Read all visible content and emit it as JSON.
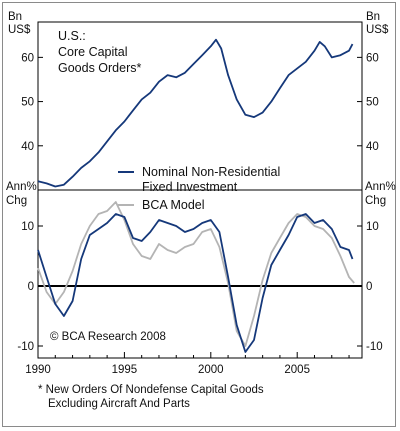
{
  "colors": {
    "navy": "#15387a",
    "gray": "#b4b4b4",
    "axis": "#000000",
    "frame": "#8a8a8a"
  },
  "chart_data": [
    {
      "type": "line",
      "panel": "top",
      "title": "U.S.:",
      "subtitle": "Core Capital Goods Orders*",
      "ylabel_left": [
        "Bn",
        "US$"
      ],
      "ylabel_right": [
        "Bn",
        "US$"
      ],
      "ylim": [
        30,
        68
      ],
      "yticks": [
        40,
        50,
        60
      ],
      "xlim": [
        1990,
        2008.75
      ],
      "series": [
        {
          "x": [
            1990.0,
            1990.5,
            1991.0,
            1991.5,
            1992.0,
            1992.5,
            1993.0,
            1993.5,
            1994.0,
            1994.5,
            1995.0,
            1995.5,
            1996.0,
            1996.5,
            1997.0,
            1997.5,
            1998.0,
            1998.5,
            1999.0,
            1999.5,
            2000.0,
            2000.3,
            2000.6,
            2001.0,
            2001.5,
            2002.0,
            2002.5,
            2003.0,
            2003.5,
            2004.0,
            2004.5,
            2005.0,
            2005.5,
            2006.0,
            2006.3,
            2006.6,
            2007.0,
            2007.5,
            2008.0,
            2008.2
          ],
          "values": [
            32.0,
            31.5,
            30.8,
            31.2,
            33.0,
            35.0,
            36.5,
            38.5,
            41.0,
            43.5,
            45.5,
            48.0,
            50.5,
            52.0,
            54.5,
            56.0,
            55.5,
            56.5,
            58.5,
            60.5,
            62.5,
            64.0,
            62.0,
            56.0,
            50.5,
            47.0,
            46.5,
            47.5,
            50.0,
            53.0,
            56.0,
            57.5,
            59.0,
            61.5,
            63.5,
            62.5,
            60.0,
            60.5,
            61.5,
            63.0
          ]
        }
      ]
    },
    {
      "type": "line",
      "panel": "bottom",
      "ylabel_left": [
        "Ann%",
        "Chg"
      ],
      "ylabel_right": [
        "Ann%",
        "Chg"
      ],
      "ylim": [
        -12,
        16
      ],
      "yticks": [
        -10,
        0,
        10
      ],
      "xlim": [
        1990,
        2008.75
      ],
      "xticks": [
        1990,
        1995,
        2000,
        2005
      ],
      "legend": "upper-left",
      "annotation": "© BCA Research 2008",
      "series": [
        {
          "name": "Nominal Non-Residential Fixed Investment",
          "color": "#15387a",
          "x": [
            1990.0,
            1990.5,
            1991.0,
            1991.5,
            1992.0,
            1992.5,
            1993.0,
            1993.5,
            1994.0,
            1994.5,
            1995.0,
            1995.5,
            1996.0,
            1996.5,
            1997.0,
            1997.5,
            1998.0,
            1998.5,
            1999.0,
            1999.5,
            2000.0,
            2000.5,
            2001.0,
            2001.5,
            2002.0,
            2002.5,
            2003.0,
            2003.5,
            2004.0,
            2004.5,
            2005.0,
            2005.5,
            2006.0,
            2006.5,
            2007.0,
            2007.5,
            2008.0,
            2008.2
          ],
          "values": [
            6.0,
            1.5,
            -3.0,
            -5.0,
            -2.5,
            4.5,
            8.5,
            9.5,
            10.5,
            12.0,
            11.5,
            8.0,
            7.5,
            9.0,
            11.0,
            10.5,
            10.0,
            9.0,
            9.5,
            10.5,
            11.0,
            9.0,
            1.5,
            -6.5,
            -11.0,
            -9.0,
            -2.0,
            3.5,
            6.0,
            8.5,
            11.5,
            12.0,
            10.5,
            11.0,
            9.5,
            6.5,
            6.0,
            4.5
          ]
        },
        {
          "name": "BCA Model",
          "color": "#b4b4b4",
          "x": [
            1990.0,
            1990.5,
            1991.0,
            1991.5,
            1992.0,
            1992.5,
            1993.0,
            1993.5,
            1994.0,
            1994.5,
            1995.0,
            1995.5,
            1996.0,
            1996.5,
            1997.0,
            1997.5,
            1998.0,
            1998.5,
            1999.0,
            1999.5,
            2000.0,
            2000.5,
            2001.0,
            2001.5,
            2002.0,
            2002.5,
            2003.0,
            2003.5,
            2004.0,
            2004.5,
            2005.0,
            2005.5,
            2006.0,
            2006.5,
            2007.0,
            2007.5,
            2008.0,
            2008.3
          ],
          "values": [
            3.0,
            -1.0,
            -3.0,
            -1.0,
            2.5,
            7.0,
            10.0,
            12.0,
            12.5,
            14.0,
            11.0,
            7.0,
            5.0,
            4.5,
            7.0,
            6.0,
            5.5,
            6.5,
            7.0,
            9.0,
            9.5,
            6.5,
            0.5,
            -7.5,
            -10.0,
            -5.0,
            1.0,
            5.5,
            8.0,
            10.5,
            12.0,
            11.5,
            10.0,
            9.5,
            8.0,
            5.0,
            1.5,
            0.5
          ]
        }
      ]
    }
  ],
  "footnote": {
    "line1": "* New Orders Of Nondefense Capital Goods",
    "line2": "Excluding Aircraft And Parts"
  }
}
